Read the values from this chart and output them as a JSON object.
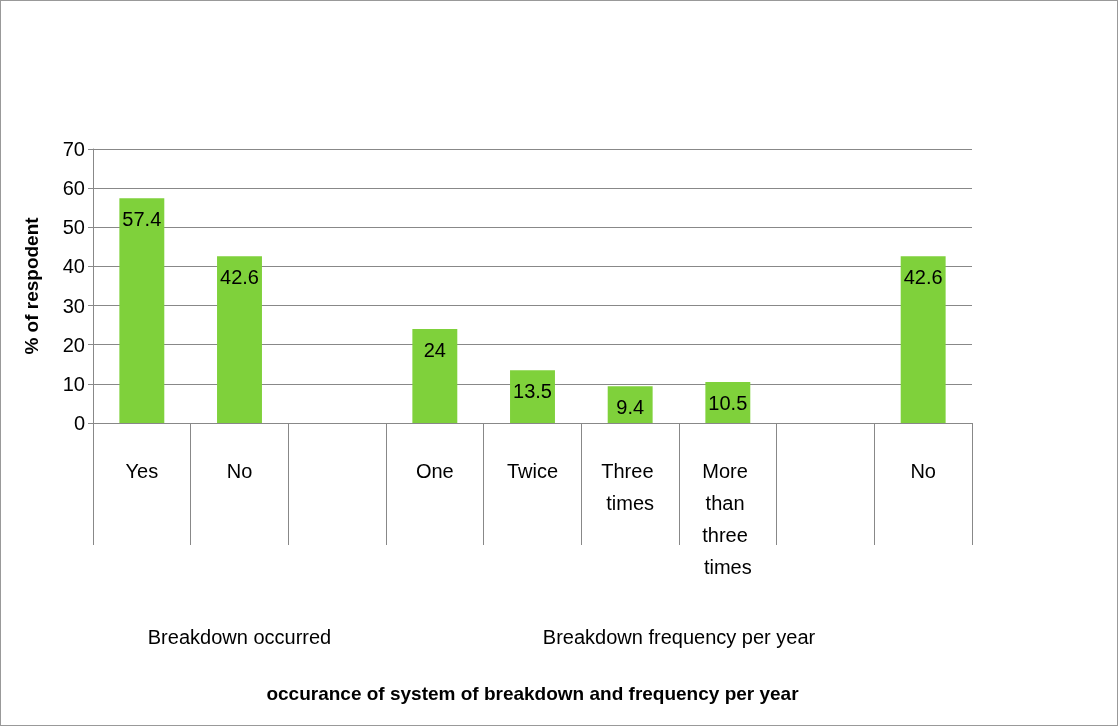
{
  "chart_data": {
    "type": "bar",
    "ylabel": "% of respodent",
    "categories": [
      "Yes",
      "No",
      null,
      "One",
      "Twice",
      "Three times",
      "More than three times",
      null,
      "No"
    ],
    "values": [
      57.4,
      42.6,
      null,
      24,
      13.5,
      9.4,
      10.5,
      null,
      42.6
    ],
    "color": "#7fd13b",
    "ylim": [
      0,
      70
    ],
    "yticks": [
      0,
      10,
      20,
      30,
      40,
      50,
      60,
      70
    ],
    "grid": "y",
    "data_labels": true,
    "annotations": [
      "Breakdown occurred",
      "Breakdown frequency per year",
      "occurance of system of breakdown and frequency per year"
    ]
  }
}
